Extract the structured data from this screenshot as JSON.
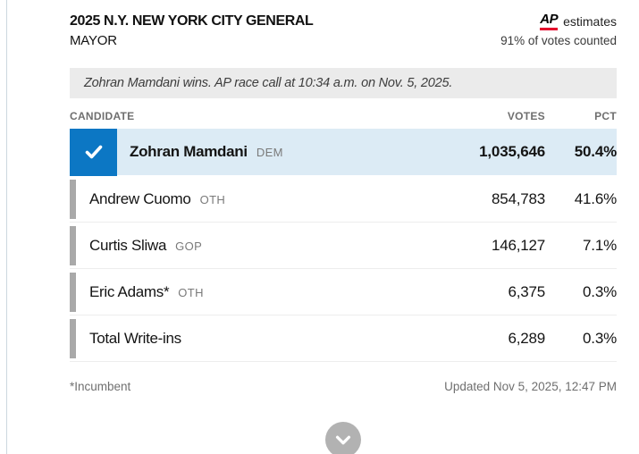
{
  "header": {
    "title": "2025 N.Y. NEW YORK CITY GENERAL",
    "office": "MAYOR",
    "ap_logo_text": "AP",
    "estimates_label": "estimates",
    "votes_counted": "91% of votes counted"
  },
  "banner": {
    "race_call_text": "Zohran Mamdani wins. AP race call at 10:34 a.m. on Nov. 5, 2025."
  },
  "table": {
    "columns": {
      "candidate": "CANDIDATE",
      "votes": "VOTES",
      "pct": "PCT"
    },
    "rows": [
      {
        "name": "Zohran Mamdani",
        "party": "DEM",
        "votes": "1,035,646",
        "pct": "50.4%",
        "winner": true
      },
      {
        "name": "Andrew Cuomo",
        "party": "OTH",
        "votes": "854,783",
        "pct": "41.6%",
        "winner": false
      },
      {
        "name": "Curtis Sliwa",
        "party": "GOP",
        "votes": "146,127",
        "pct": "7.1%",
        "winner": false
      },
      {
        "name": "Eric Adams*",
        "party": "OTH",
        "votes": "6,375",
        "pct": "0.3%",
        "winner": false
      },
      {
        "name": "Total Write-ins",
        "party": "",
        "votes": "6,289",
        "pct": "0.3%",
        "winner": false
      }
    ]
  },
  "footer": {
    "incumbent_note": "*Incumbent",
    "updated": "Updated Nov 5, 2025, 12:47 PM"
  },
  "icons": {
    "winner_check": "check-icon",
    "expand": "chevron-down-icon"
  },
  "colors": {
    "winner_blue": "#0c77c4",
    "winner_row_bg": "#dcebf5",
    "ap_red": "#e4002b",
    "banner_bg": "#ebebeb",
    "marker_gray": "#a9a9a9",
    "expand_button_gray": "#b2b2b2"
  }
}
